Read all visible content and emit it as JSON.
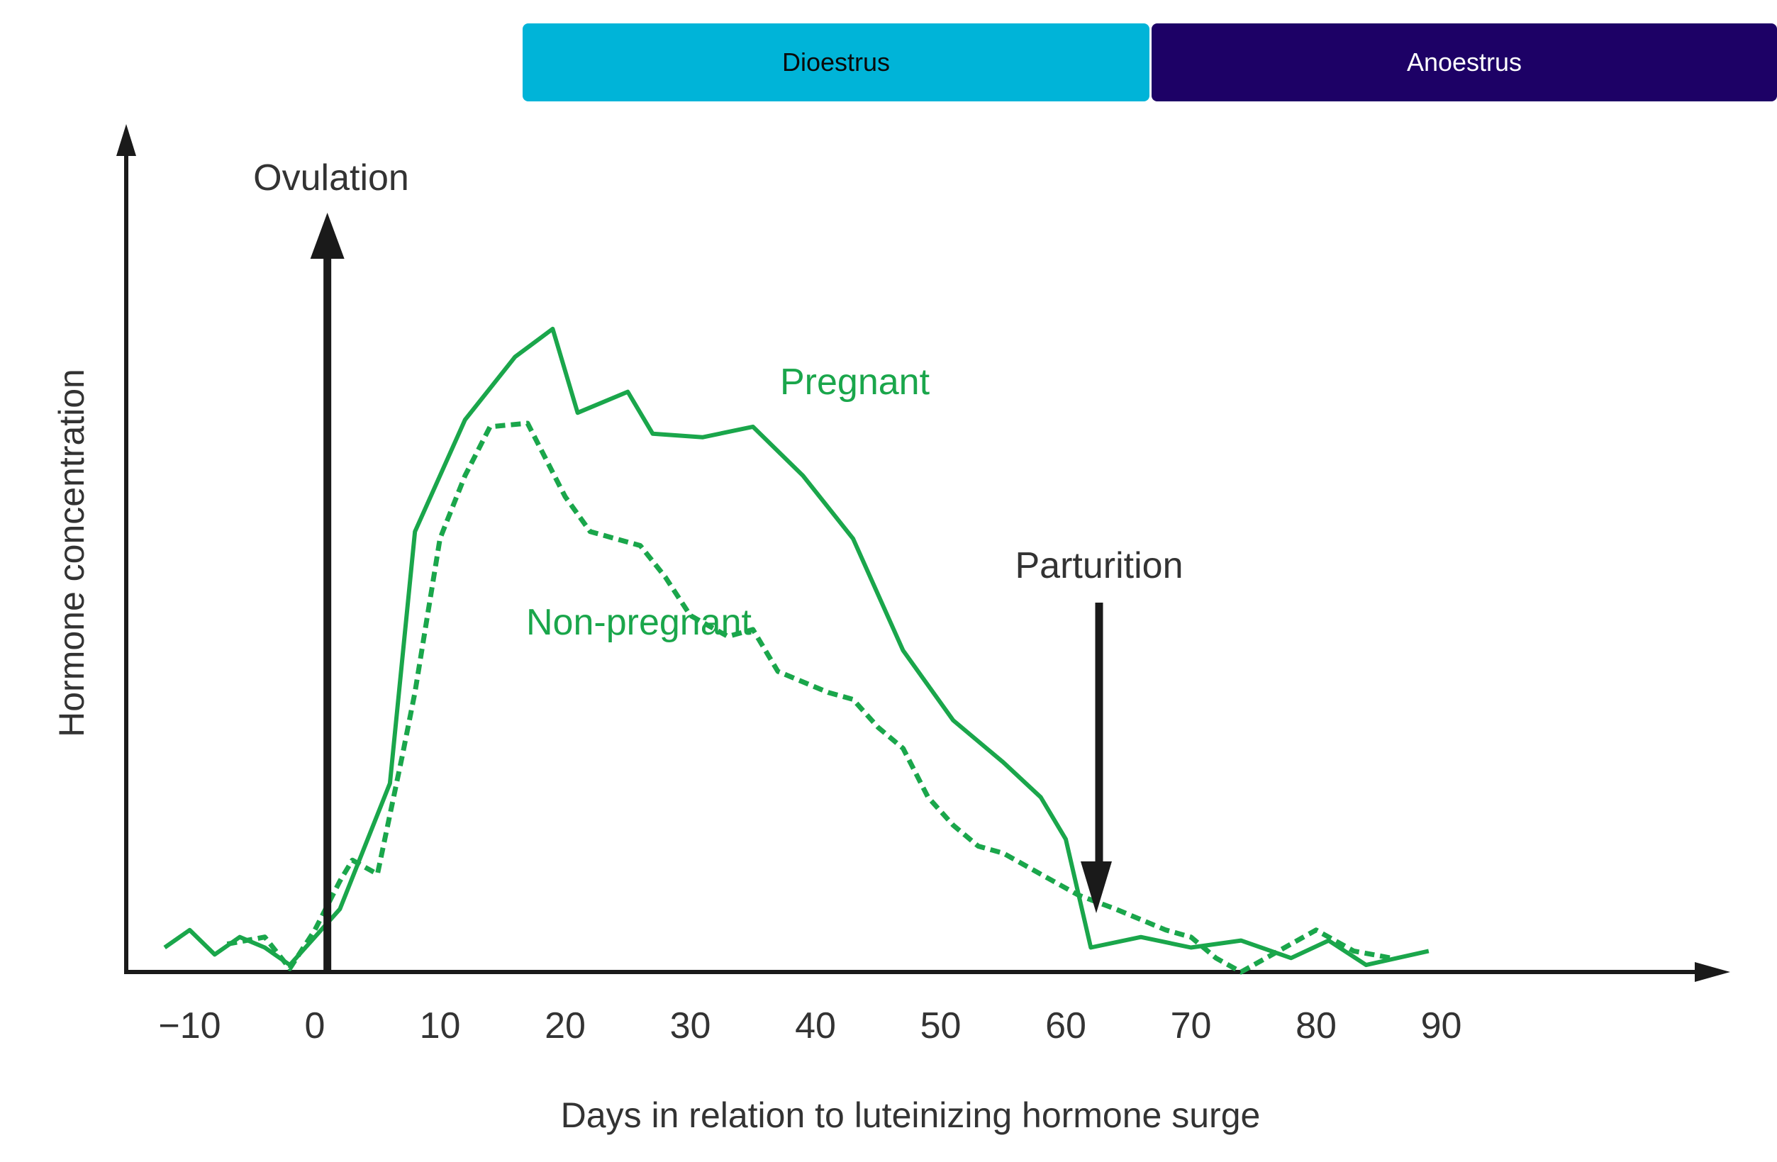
{
  "phases": [
    {
      "label": "Dioestrus",
      "color": "#00b4d8"
    },
    {
      "label": "Anoestrus",
      "color": "#1d0166"
    }
  ],
  "chart_data": {
    "type": "line",
    "title": "",
    "xlabel": "Days in relation to luteinizing hormone surge",
    "ylabel": "Hormone concentration",
    "xlim": [
      -13,
      113
    ],
    "ylim": [
      0,
      100
    ],
    "x_ticks": [
      -10,
      0,
      10,
      20,
      30,
      40,
      50,
      60,
      70,
      80,
      90
    ],
    "x_tick_labels": [
      "−10",
      "0",
      "10",
      "20",
      "30",
      "40",
      "50",
      "60",
      "70",
      "80",
      "90"
    ],
    "colors": {
      "pregnant": "#1aa64b",
      "non_pregnant": "#1aa64b",
      "axis": "#1a1a1a",
      "label": "#333333"
    },
    "series": [
      {
        "name": "Pregnant",
        "style": "solid",
        "x": [
          -12,
          -10,
          -8,
          -6,
          -4,
          -2,
          0,
          2,
          4,
          6,
          8,
          12,
          16,
          19,
          21,
          25,
          27,
          31,
          35,
          39,
          43,
          47,
          51,
          55,
          58,
          60,
          62,
          66,
          70,
          74,
          78,
          81,
          84,
          89
        ],
        "y": [
          3.5,
          6,
          2.5,
          5,
          3.5,
          1,
          5,
          9,
          18,
          27,
          63,
          79,
          88,
          92,
          80,
          83,
          77,
          76.5,
          78,
          71,
          62,
          46,
          36,
          30,
          25,
          19,
          3.5,
          5,
          3.5,
          4.5,
          2,
          4.5,
          1,
          3
        ]
      },
      {
        "name": "Non-pregnant",
        "style": "dashed",
        "x": [
          -7,
          -4,
          -2,
          0,
          2,
          3,
          5,
          7,
          8,
          10,
          12,
          14,
          17,
          20,
          22,
          24,
          26,
          28,
          30,
          33,
          35,
          37,
          41,
          43,
          45,
          47,
          49,
          51,
          53,
          55,
          57,
          59,
          61,
          64,
          68,
          70,
          72,
          74,
          76,
          80,
          83,
          86
        ],
        "y": [
          4,
          5,
          0.5,
          6,
          13,
          16,
          14,
          31,
          40,
          62,
          71,
          78,
          78.5,
          68,
          63,
          62,
          61,
          56.5,
          51,
          48,
          49,
          43,
          40,
          39,
          35,
          32,
          25,
          21,
          18,
          17,
          15,
          13,
          11,
          9,
          6,
          5,
          2,
          0,
          2,
          6,
          3,
          2
        ]
      }
    ],
    "annotations": [
      {
        "text": "Ovulation",
        "x": 1,
        "arrow": "up"
      },
      {
        "text": "Parturition",
        "x": 63,
        "arrow": "down"
      },
      {
        "text": "Pregnant",
        "series": "Pregnant"
      },
      {
        "text": "Non-pregnant",
        "series": "Non-pregnant"
      }
    ]
  }
}
